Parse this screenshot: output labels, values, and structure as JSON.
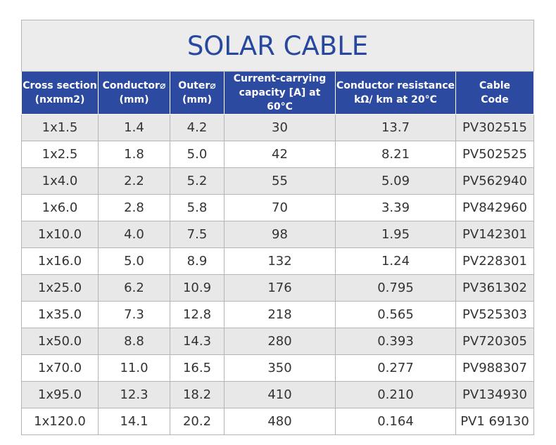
{
  "title": "SOLAR CABLE",
  "table": {
    "header": [
      [
        "Cross section",
        "(nxmm2)"
      ],
      [
        "Conductor⌀",
        "(mm)"
      ],
      [
        "Outer⌀",
        "(mm)"
      ],
      [
        "Current-carrying",
        "capacity [A] at 60°C"
      ],
      [
        "Conductor resistance",
        "kΩ/ km at 20°C"
      ],
      [
        "Cable",
        "Code"
      ]
    ],
    "rows": [
      [
        "1x1.5",
        "1.4",
        "4.2",
        "30",
        "13.7",
        "PV302515"
      ],
      [
        "1x2.5",
        "1.8",
        "5.0",
        "42",
        "8.21",
        "PV502525"
      ],
      [
        "1x4.0",
        "2.2",
        "5.2",
        "55",
        "5.09",
        "PV562940"
      ],
      [
        "1x6.0",
        "2.8",
        "5.8",
        "70",
        "3.39",
        "PV842960"
      ],
      [
        "1x10.0",
        "4.0",
        "7.5",
        "98",
        "1.95",
        "PV142301"
      ],
      [
        "1x16.0",
        "5.0",
        "8.9",
        "132",
        "1.24",
        "PV228301"
      ],
      [
        "1x25.0",
        "6.2",
        "10.9",
        "176",
        "0.795",
        "PV361302"
      ],
      [
        "1x35.0",
        "7.3",
        "12.8",
        "218",
        "0.565",
        "PV525303"
      ],
      [
        "1x50.0",
        "8.8",
        "14.3",
        "280",
        "0.393",
        "PV720305"
      ],
      [
        "1x70.0",
        "11.0",
        "16.5",
        "350",
        "0.277",
        "PV988307"
      ],
      [
        "1x95.0",
        "12.3",
        "18.2",
        "410",
        "0.210",
        "PV134930"
      ],
      [
        "1x120.0",
        "14.1",
        "20.2",
        "480",
        "0.164",
        "PV1 69130"
      ]
    ]
  }
}
